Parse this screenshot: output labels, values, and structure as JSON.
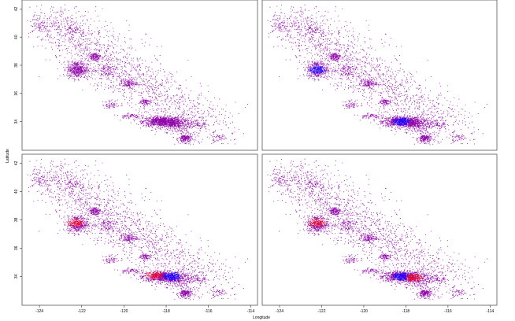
{
  "figure": {
    "xlabel": "Longitude",
    "ylabel": "Latitude"
  },
  "chart_data": {
    "type": "scatter",
    "layout": "2x2 grid of map panels, shared axes",
    "xlabel": "Longitude",
    "ylabel": "Latitude",
    "xlim": [
      -124.6,
      -113.9
    ],
    "ylim": [
      32.3,
      42.3
    ],
    "x_ticks": [
      "-124",
      "-122",
      "-120",
      "-118",
      "-116",
      "-114"
    ],
    "y_ticks": [
      "34",
      "36",
      "38",
      "40",
      "42"
    ],
    "grid": false,
    "legend": "none",
    "colors": {
      "low": "#2200ff",
      "mid": "#8e00a8",
      "high": "#e00030"
    },
    "panels": [
      {
        "id": "top-left",
        "dominant": "mid",
        "hotspots": [
          {
            "x": -118.3,
            "y": 34.0,
            "tone": "mid"
          },
          {
            "x": -122.2,
            "y": 37.7,
            "tone": "mid"
          }
        ]
      },
      {
        "id": "top-right",
        "dominant": "mid",
        "hotspots": [
          {
            "x": -118.2,
            "y": 34.0,
            "tone": "low"
          },
          {
            "x": -122.2,
            "y": 37.7,
            "tone": "low"
          }
        ]
      },
      {
        "id": "bottom-left",
        "dominant": "mid",
        "hotspots": [
          {
            "x": -118.6,
            "y": 34.1,
            "tone": "high"
          },
          {
            "x": -117.7,
            "y": 34.0,
            "tone": "low"
          },
          {
            "x": -122.3,
            "y": 37.8,
            "tone": "high"
          }
        ]
      },
      {
        "id": "bottom-right",
        "dominant": "mid",
        "hotspots": [
          {
            "x": -118.2,
            "y": 34.0,
            "tone": "low"
          },
          {
            "x": -117.6,
            "y": 33.9,
            "tone": "high"
          },
          {
            "x": -122.2,
            "y": 37.8,
            "tone": "high"
          }
        ]
      }
    ]
  }
}
